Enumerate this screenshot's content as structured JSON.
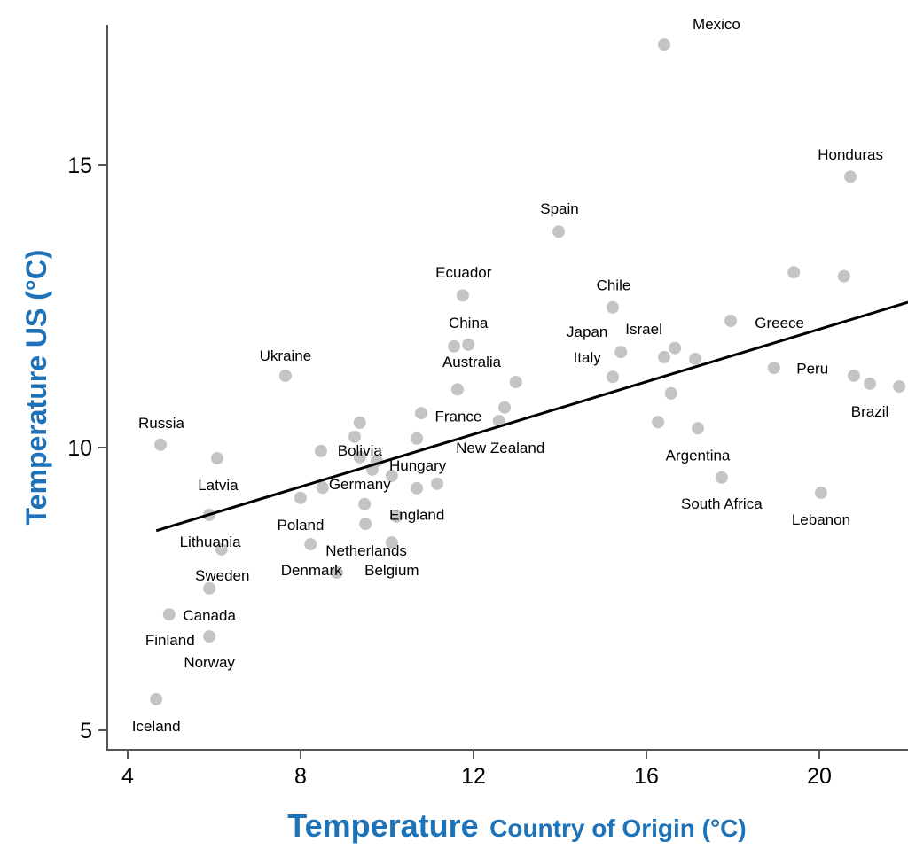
{
  "chart_data": {
    "type": "scatter",
    "xlabel_main": "Temperature",
    "xlabel_sub": "Country of Origin  (°C)",
    "ylabel": "Temperature US  (°C)",
    "xlim": [
      3.5,
      22.1
    ],
    "ylim": [
      4.7,
      17.9
    ],
    "xticks": [
      4,
      8,
      12,
      16,
      20
    ],
    "yticks": [
      5,
      10,
      15
    ],
    "grid": false,
    "point_color": "#c4c4c4",
    "title_color": "#1d72b8",
    "points": [
      [
        16.41,
        17.13
      ],
      [
        20.72,
        14.79
      ],
      [
        13.97,
        13.82
      ],
      [
        19.41,
        13.1
      ],
      [
        20.57,
        13.03
      ],
      [
        11.75,
        12.69
      ],
      [
        15.22,
        12.48
      ],
      [
        17.95,
        12.24
      ],
      [
        11.55,
        11.79
      ],
      [
        11.88,
        11.82
      ],
      [
        15.41,
        11.69
      ],
      [
        16.66,
        11.76
      ],
      [
        16.41,
        11.6
      ],
      [
        17.13,
        11.57
      ],
      [
        7.65,
        11.27
      ],
      [
        11.63,
        11.03
      ],
      [
        15.22,
        11.25
      ],
      [
        12.98,
        11.16
      ],
      [
        18.95,
        11.41
      ],
      [
        20.8,
        11.27
      ],
      [
        21.17,
        11.13
      ],
      [
        21.85,
        11.08
      ],
      [
        16.57,
        10.96
      ],
      [
        10.79,
        10.61
      ],
      [
        12.72,
        10.71
      ],
      [
        12.59,
        10.47
      ],
      [
        16.27,
        10.45
      ],
      [
        17.19,
        10.34
      ],
      [
        4.76,
        10.05
      ],
      [
        6.07,
        9.81
      ],
      [
        10.69,
        10.16
      ],
      [
        9.37,
        10.44
      ],
      [
        9.25,
        10.19
      ],
      [
        8.47,
        9.94
      ],
      [
        9.37,
        9.83
      ],
      [
        9.76,
        9.76
      ],
      [
        9.66,
        9.61
      ],
      [
        10.11,
        9.5
      ],
      [
        11.16,
        9.36
      ],
      [
        10.69,
        9.28
      ],
      [
        8.51,
        9.29
      ],
      [
        8.0,
        9.11
      ],
      [
        5.89,
        8.81
      ],
      [
        9.48,
        9.0
      ],
      [
        10.22,
        8.78
      ],
      [
        9.5,
        8.65
      ],
      [
        17.74,
        9.47
      ],
      [
        20.04,
        9.2
      ],
      [
        6.17,
        8.2
      ],
      [
        8.23,
        8.29
      ],
      [
        10.11,
        8.32
      ],
      [
        8.84,
        7.79
      ],
      [
        5.89,
        7.51
      ],
      [
        4.96,
        7.05
      ],
      [
        5.89,
        6.66
      ],
      [
        4.66,
        5.55
      ]
    ],
    "fit_line": {
      "x": [
        4.66,
        22.05
      ],
      "y": [
        8.53,
        12.57
      ]
    },
    "annotations": [
      {
        "text": "Mexico",
        "x": 17.62,
        "y": 17.49
      },
      {
        "text": "Honduras",
        "x": 20.72,
        "y": 15.19
      },
      {
        "text": "Spain",
        "x": 13.99,
        "y": 14.23
      },
      {
        "text": "Ecuador",
        "x": 11.77,
        "y": 13.1
      },
      {
        "text": "Chile",
        "x": 15.24,
        "y": 12.88
      },
      {
        "text": "Greece",
        "x": 19.08,
        "y": 12.21
      },
      {
        "text": "China",
        "x": 11.88,
        "y": 12.21
      },
      {
        "text": "Japan",
        "x": 14.63,
        "y": 12.05
      },
      {
        "text": "Israel",
        "x": 15.94,
        "y": 12.1
      },
      {
        "text": "Australia",
        "x": 11.96,
        "y": 11.52
      },
      {
        "text": "Italy",
        "x": 14.63,
        "y": 11.6
      },
      {
        "text": "Ukraine",
        "x": 7.65,
        "y": 11.63
      },
      {
        "text": "Peru",
        "x": 19.84,
        "y": 11.4
      },
      {
        "text": "Brazil",
        "x": 21.17,
        "y": 10.64
      },
      {
        "text": "Russia",
        "x": 4.78,
        "y": 10.44
      },
      {
        "text": "France",
        "x": 11.65,
        "y": 10.56
      },
      {
        "text": "New Zealand",
        "x": 12.62,
        "y": 10.0
      },
      {
        "text": "Bolivia",
        "x": 9.37,
        "y": 9.95
      },
      {
        "text": "Hungary",
        "x": 10.71,
        "y": 9.69
      },
      {
        "text": "Germany",
        "x": 9.37,
        "y": 9.36
      },
      {
        "text": "Argentina",
        "x": 17.19,
        "y": 9.87
      },
      {
        "text": "Latvia",
        "x": 6.09,
        "y": 9.34
      },
      {
        "text": "South Africa",
        "x": 17.74,
        "y": 9.01
      },
      {
        "text": "Lebanon",
        "x": 20.04,
        "y": 8.73
      },
      {
        "text": "England",
        "x": 10.69,
        "y": 8.82
      },
      {
        "text": "Poland",
        "x": 8.0,
        "y": 8.64
      },
      {
        "text": "Lithuania",
        "x": 5.91,
        "y": 8.34
      },
      {
        "text": "Netherlands",
        "x": 9.52,
        "y": 8.18
      },
      {
        "text": "Denmark",
        "x": 8.25,
        "y": 7.84
      },
      {
        "text": "Belgium",
        "x": 10.11,
        "y": 7.84
      },
      {
        "text": "Sweden",
        "x": 6.19,
        "y": 7.74
      },
      {
        "text": "Canada",
        "x": 5.89,
        "y": 7.04
      },
      {
        "text": "Finland",
        "x": 4.98,
        "y": 6.6
      },
      {
        "text": "Norway",
        "x": 5.89,
        "y": 6.21
      },
      {
        "text": "Iceland",
        "x": 4.66,
        "y": 5.08
      }
    ]
  }
}
